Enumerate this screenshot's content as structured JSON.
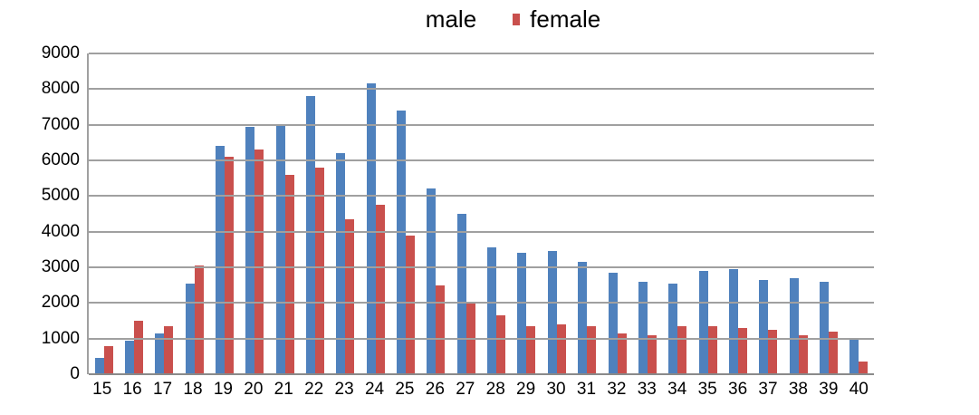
{
  "legend": {
    "items": [
      {
        "label": "male",
        "color": "#4f81bd",
        "marker_visible": false
      },
      {
        "label": "female",
        "color": "#c9504d",
        "marker_visible": true
      }
    ]
  },
  "colors": {
    "male": "#4f81bd",
    "female": "#c9504d",
    "gridline": "#a0a0a0",
    "axis_line": "#8a8a8a",
    "text": "#000000",
    "background": "#ffffff"
  },
  "chart_data": {
    "type": "bar",
    "title": "",
    "categories": [
      "15",
      "16",
      "17",
      "18",
      "19",
      "20",
      "21",
      "22",
      "23",
      "24",
      "25",
      "26",
      "27",
      "28",
      "29",
      "30",
      "31",
      "32",
      "33",
      "34",
      "35",
      "36",
      "37",
      "38",
      "39",
      "40"
    ],
    "series": [
      {
        "name": "male",
        "color": "#4f81bd",
        "values": [
          450,
          950,
          1150,
          2550,
          6400,
          6950,
          7000,
          7800,
          6200,
          8150,
          7400,
          5200,
          4500,
          3550,
          3400,
          3450,
          3150,
          2850,
          2600,
          2550,
          2900,
          2950,
          2650,
          2700,
          2600,
          1000
        ]
      },
      {
        "name": "female",
        "color": "#c9504d",
        "values": [
          800,
          1500,
          1350,
          3050,
          6100,
          6300,
          5600,
          5800,
          4350,
          4750,
          3900,
          2500,
          2000,
          1650,
          1350,
          1400,
          1350,
          1150,
          1100,
          1350,
          1350,
          1300,
          1250,
          1100,
          1200,
          350
        ]
      }
    ],
    "xlabel": "",
    "ylabel": "",
    "ylim": [
      0,
      9000
    ],
    "ytick_step": 1000,
    "yticks": [
      0,
      1000,
      2000,
      3000,
      4000,
      5000,
      6000,
      7000,
      8000,
      9000
    ],
    "grid": true,
    "legend_position": "top"
  }
}
